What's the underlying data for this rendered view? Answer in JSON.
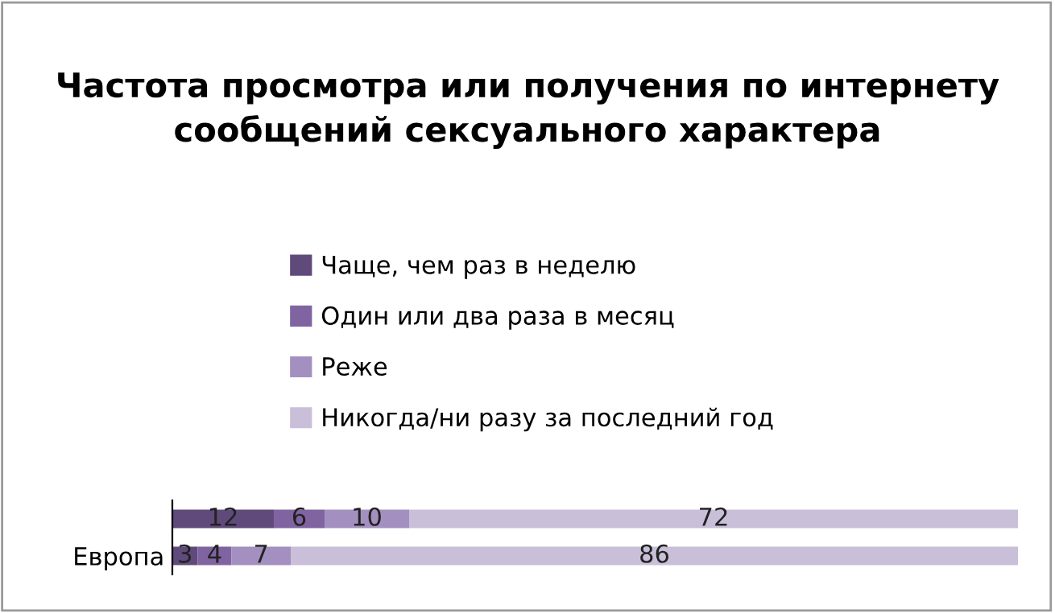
{
  "chart_data": {
    "type": "bar",
    "orientation": "horizontal",
    "stacked": true,
    "title": "Частота просмотра или получения по интернету сообщений сексуального характера",
    "categories": [
      null,
      "Европа"
    ],
    "series": [
      {
        "name": "Чаще, чем раз в неделю",
        "color": "#604a7b",
        "values": [
          12,
          3
        ]
      },
      {
        "name": "Один или два раза в месяц",
        "color": "#8064a2",
        "values": [
          6,
          4
        ]
      },
      {
        "name": "Реже",
        "color": "#a390c0",
        "values": [
          10,
          7
        ]
      },
      {
        "name": "Никогда/ни разу за последний год",
        "color": "#c9bfd9",
        "values": [
          72,
          86
        ]
      }
    ],
    "data_labels": true,
    "legend": "top",
    "grid": false,
    "tick_labels": "y"
  }
}
